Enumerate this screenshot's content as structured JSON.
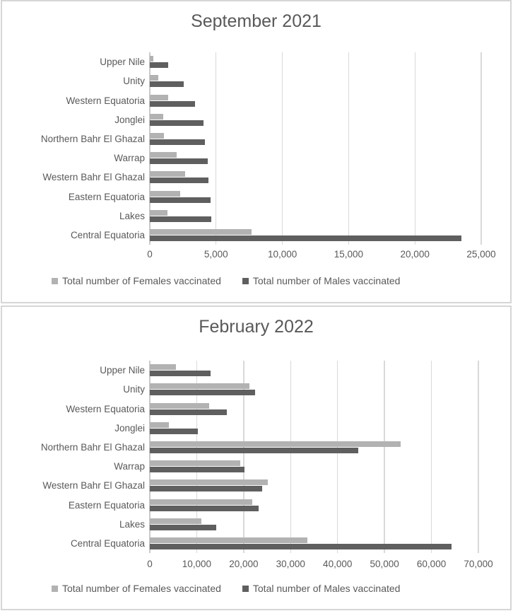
{
  "colors": {
    "female_bar": "#b2b2b2",
    "male_bar": "#5f5f5f",
    "text": "#595959",
    "gridline": "#d9d9d9",
    "panel_border": "#d6d6d6"
  },
  "chart_data": [
    {
      "type": "bar",
      "orientation": "horizontal",
      "title": "September 2021",
      "categories": [
        "Upper Nile",
        "Unity",
        "Western Equatoria",
        "Jonglei",
        "Northern Bahr El Ghazal",
        "Warrap",
        "Western Bahr El Ghazal",
        "Eastern Equatoria",
        "Lakes",
        "Central Equatoria"
      ],
      "series": [
        {
          "name": "Total number of Females vaccinated",
          "values": [
            250,
            650,
            1400,
            1000,
            1050,
            2000,
            2650,
            2300,
            1350,
            7650
          ]
        },
        {
          "name": "Total number of Males vaccinated",
          "values": [
            1400,
            2550,
            3400,
            4050,
            4150,
            4350,
            4400,
            4600,
            4650,
            23500
          ]
        }
      ],
      "xlim": [
        0,
        25000
      ],
      "xticks": [
        "0",
        "5,000",
        "10,000",
        "15,000",
        "20,000",
        "25,000"
      ],
      "grid": true,
      "legend_position": "bottom"
    },
    {
      "type": "bar",
      "orientation": "horizontal",
      "title": "February 2022",
      "categories": [
        "Upper Nile",
        "Unity",
        "Western Equatoria",
        "Jonglei",
        "Northern Bahr El Ghazal",
        "Warrap",
        "Western Bahr El Ghazal",
        "Eastern Equatoria",
        "Lakes",
        "Central Equatoria"
      ],
      "series": [
        {
          "name": "Total number of Females vaccinated",
          "values": [
            5500,
            21200,
            12600,
            4000,
            53500,
            19200,
            25100,
            21900,
            11000,
            33500
          ]
        },
        {
          "name": "Total number of Males vaccinated",
          "values": [
            12900,
            22400,
            16400,
            10200,
            44400,
            20200,
            24000,
            23200,
            14100,
            64300
          ]
        }
      ],
      "xlim": [
        0,
        70000
      ],
      "xticks": [
        "0",
        "10,000",
        "20,000",
        "30,000",
        "40,000",
        "50,000",
        "60,000",
        "70,000"
      ],
      "grid": true,
      "legend_position": "bottom"
    }
  ]
}
